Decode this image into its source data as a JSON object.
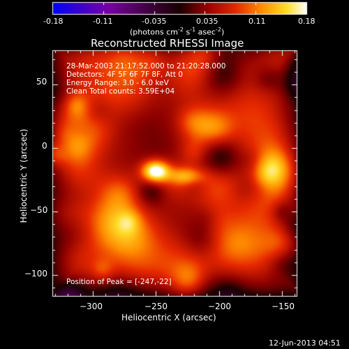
{
  "colorbar": {
    "ticks": [
      "-0.18",
      "-0.11",
      "-0.035",
      "0.035",
      "0.11",
      "0.18"
    ],
    "units_prefix": "(photons cm",
    "units_exp1": "-2",
    "units_mid": " s",
    "units_exp2": "-1",
    "units_mid2": " asec",
    "units_exp3": "-2",
    "units_suffix": ")"
  },
  "plot": {
    "title": "Reconstructed RHESSI Image",
    "xlabel": "Heliocentric X (arcsec)",
    "ylabel": "Heliocentric Y (arcsec)",
    "x_ticks": [
      "−300",
      "−250",
      "−200",
      "−150"
    ],
    "y_ticks": [
      "50",
      "0",
      "−50",
      "−100"
    ],
    "info_lines": [
      "28-Mar-2003 21:17:52.000 to 21:20:28.000",
      "Detectors: 4F 5F 6F 7F 8F, Att 0",
      "Energy Range: 3.0 - 6.0 keV",
      "Clean    Total counts: 3.59E+04"
    ],
    "peak_label": "Position of Peak = [-247,-22]",
    "peak_position": [
      -247,
      -22
    ],
    "x_range": [
      -332,
      -138
    ],
    "y_range": [
      -117,
      77
    ]
  },
  "footer": {
    "date": "12-Jun-2013 04:51"
  },
  "colors": {
    "background": "#000000",
    "foreground": "#ffffff"
  }
}
